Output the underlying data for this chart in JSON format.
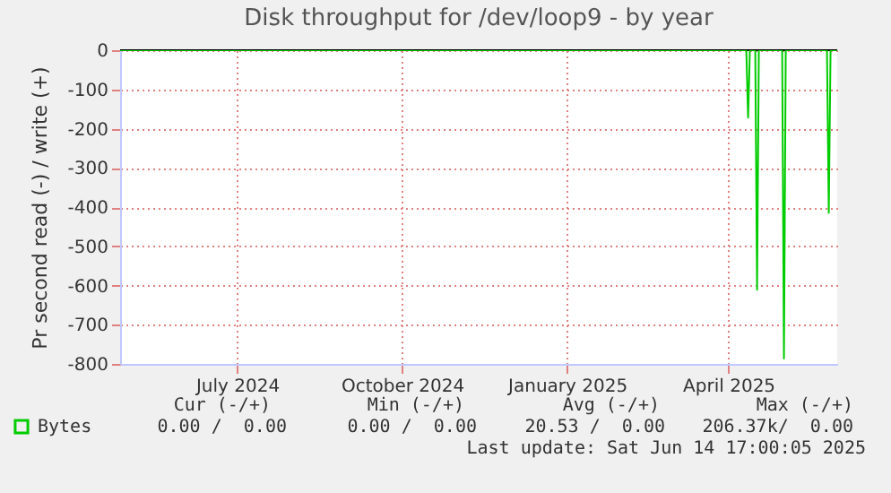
{
  "chart_data": {
    "type": "line",
    "title": "Disk throughput for /dev/loop9 - by year",
    "ylabel": "Pr second read (-) / write (+)",
    "x": [
      "2024-05-10T17:00",
      "2025-04-25",
      "2025-04-26",
      "2025-04-27",
      "2025-04-30",
      "2025-05-01",
      "2025-05-02",
      "2025-05-15",
      "2025-05-16",
      "2025-05-17",
      "2025-06-09",
      "2025-06-10",
      "2025-06-11",
      "2025-06-14T17:00"
    ],
    "series": [
      {
        "name": "Bytes",
        "color": "#00cc00",
        "values": [
          0,
          0,
          -172,
          0,
          0,
          -611,
          0,
          0,
          -786,
          0,
          0,
          -415,
          0,
          0
        ]
      }
    ],
    "xlim": [
      "2024-05-10T17:00",
      "2025-06-14T17:00"
    ],
    "xticks": [
      {
        "value": "2024-07-15",
        "label": "July 2024"
      },
      {
        "value": "2024-10-15",
        "label": "October 2024"
      },
      {
        "value": "2025-01-15",
        "label": "January 2025"
      },
      {
        "value": "2025-04-15",
        "label": "April 2025"
      }
    ],
    "ylim": [
      -800,
      0
    ],
    "yticks": [
      -800,
      -700,
      -600,
      -500,
      -400,
      -300,
      -200,
      -100,
      0
    ],
    "ref_lines": [
      {
        "axis": "y",
        "value": 0,
        "color": "#000000"
      }
    ],
    "grid": true,
    "legend": "bottom left",
    "marker": "none",
    "line_style": "solid",
    "annotations": [
      "Cur (-/+)",
      "Min (-/+)",
      "Avg (-/+)",
      "Max (-/+)",
      "0.00 /  0.00",
      "0.00 /  0.00",
      "20.53 /  0.00",
      "206.37k/  0.00",
      "Last update: Sat Jun 14 17:00:05 2025"
    ]
  }
}
